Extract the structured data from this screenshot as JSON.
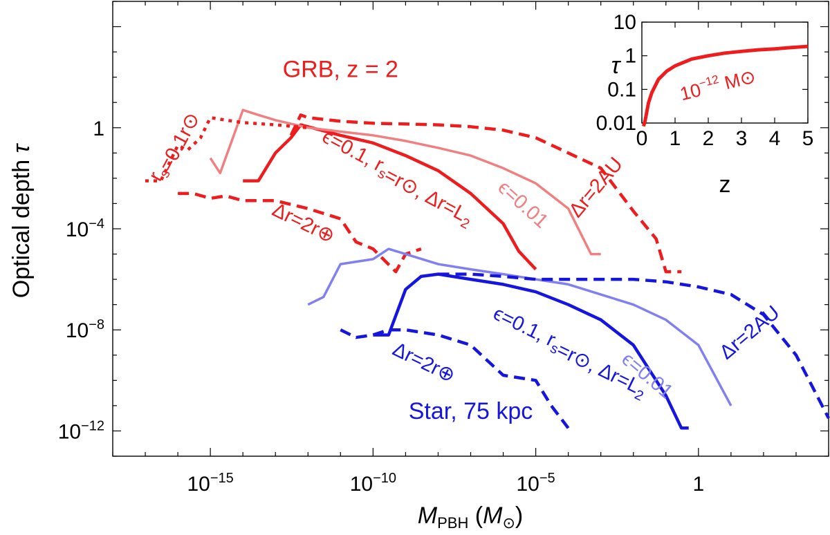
{
  "chart_data": {
    "type": "line",
    "title": "",
    "xlabel": "M_PBH (M_⊙)",
    "ylabel": "Optical depth τ",
    "xscale": "log",
    "yscale": "log",
    "xlim": [
      1e-18,
      10000.0
    ],
    "ylim": [
      1e-13,
      100000.0
    ],
    "x_ticks": [
      {
        "value": 1e-15,
        "label": "10^-15"
      },
      {
        "value": 1e-10,
        "label": "10^-10"
      },
      {
        "value": 1e-05,
        "label": "10^-5"
      },
      {
        "value": 1,
        "label": "1"
      }
    ],
    "y_ticks": [
      {
        "value": 1e-12,
        "label": "10^-12"
      },
      {
        "value": 1e-08,
        "label": "10^-8"
      },
      {
        "value": 0.0001,
        "label": "10^-4"
      },
      {
        "value": 1,
        "label": "1"
      }
    ],
    "colors": {
      "red": "#ee1c1c",
      "light_red": "#f08080",
      "blue": "#1515e0",
      "light_blue": "#8080f0"
    },
    "series": [
      {
        "name": "GRB eps=0.1 rs=rsun dr=L2",
        "color": "#ee1c1c",
        "style": "solid",
        "width": 4.5,
        "x": [
          1e-14,
          3e-14,
          1e-13,
          3e-13,
          6e-13,
          1e-12,
          5e-12,
          1e-11,
          1e-10,
          1e-09,
          1e-08,
          1e-07,
          1e-06,
          3e-06,
          1e-05
        ],
        "y": [
          0.0079,
          0.0079,
          0.1,
          0.4,
          1.3,
          1.1,
          0.63,
          0.5,
          0.25,
          0.079,
          0.02,
          0.0025,
          0.00016,
          1.3e-05,
          2.5e-06
        ]
      },
      {
        "name": "GRB eps=0.01",
        "color": "#f08080",
        "style": "solid",
        "width": 3.5,
        "x": [
          1e-15,
          2e-15,
          1e-14,
          3e-14,
          1e-13,
          1e-12,
          1e-11,
          1e-10,
          1e-09,
          1e-08,
          1e-07,
          1e-06,
          1e-05,
          0.0001,
          0.0005,
          0.001
        ],
        "y": [
          0.063,
          0.016,
          5,
          3.2,
          2,
          1,
          0.7,
          0.5,
          0.3,
          0.16,
          0.079,
          0.025,
          0.0063,
          0.00063,
          1e-05,
          1e-05
        ]
      },
      {
        "name": "GRB dotted rs=0.1 rsun",
        "color": "#ee1c1c",
        "style": "dotted",
        "width": 4.5,
        "x": [
          1e-17,
          3e-17,
          1e-16,
          2e-16,
          5e-16,
          1e-15,
          3e-15,
          1e-14,
          1e-13,
          1e-12
        ],
        "y": [
          0.0079,
          0.0079,
          0.2,
          0.13,
          0.4,
          2.5,
          2,
          1.6,
          1.3,
          1
        ]
      },
      {
        "name": "GRB dashed dr=2AU",
        "color": "#ee1c1c",
        "style": "dashed",
        "width": 4.5,
        "x": [
          3e-13,
          6e-13,
          1e-12,
          1e-11,
          1e-10,
          1e-09,
          1e-08,
          1e-07,
          1e-06,
          1e-05,
          0.0001,
          0.001,
          0.01,
          0.05,
          0.1,
          0.3
        ],
        "y": [
          0.5,
          3.2,
          2.5,
          1.8,
          1.5,
          1.4,
          1.3,
          1.1,
          0.8,
          0.4,
          0.1,
          0.025,
          0.0005,
          4e-05,
          2e-06,
          2e-06
        ]
      },
      {
        "name": "GRB dashed dr=2r_earth",
        "color": "#ee1c1c",
        "style": "dashed",
        "width": 4.5,
        "x": [
          1e-16,
          3e-16,
          1e-15,
          3e-15,
          1e-14,
          1e-13,
          1e-12,
          1e-11,
          3e-11,
          1e-10,
          5e-10,
          1e-09,
          3e-09
        ],
        "y": [
          0.0025,
          0.0025,
          0.0016,
          0.002,
          0.0013,
          0.0013,
          0.00063,
          0.00025,
          3e-05,
          1.6e-05,
          2e-06,
          1e-05,
          1.6e-05
        ]
      },
      {
        "name": "Star eps=0.1 rs=rsun dr=L2",
        "color": "#1515e0",
        "style": "solid",
        "width": 4.5,
        "x": [
          1e-10,
          3e-10,
          1e-09,
          3e-09,
          1e-08,
          1e-07,
          1e-06,
          1e-05,
          0.0001,
          0.001,
          0.01,
          0.1,
          0.3,
          0.5
        ],
        "y": [
          6.3e-09,
          6.3e-09,
          4e-07,
          1.3e-06,
          1.6e-06,
          1e-06,
          6.3e-07,
          3.2e-07,
          1e-07,
          2.5e-08,
          2.5e-09,
          2.5e-11,
          1.3e-12,
          1.3e-12
        ]
      },
      {
        "name": "Star eps=0.01",
        "color": "#8080f0",
        "style": "solid",
        "width": 3.5,
        "x": [
          1e-12,
          3e-12,
          1e-11,
          1e-10,
          3e-10,
          1e-09,
          1e-08,
          1e-07,
          1e-06,
          1e-05,
          0.0001,
          0.001,
          0.01,
          0.1,
          1,
          10
        ],
        "y": [
          1e-07,
          2e-07,
          4e-06,
          6.3e-06,
          1.6e-05,
          1e-05,
          4e-06,
          2.5e-06,
          1.6e-06,
          1e-06,
          6.3e-07,
          2.5e-07,
          1e-07,
          2.5e-08,
          2.5e-09,
          1e-11
        ]
      },
      {
        "name": "Star dashed dr=2AU",
        "color": "#1515e0",
        "style": "dashed",
        "width": 4.5,
        "x": [
          1e-08,
          1e-07,
          1e-06,
          1e-05,
          0.0001,
          0.001,
          0.01,
          0.1,
          1,
          10,
          100,
          1000,
          10000
        ],
        "y": [
          1.6e-06,
          1.6e-06,
          1.3e-06,
          1e-06,
          1e-06,
          1e-06,
          1e-06,
          8e-07,
          5e-07,
          2.5e-07,
          4e-08,
          1e-09,
          3.2e-12
        ]
      },
      {
        "name": "Star dashed dr=2r_earth",
        "color": "#1515e0",
        "style": "dashed",
        "width": 4.5,
        "x": [
          1e-11,
          3e-11,
          1e-10,
          3e-10,
          1e-09,
          1e-08,
          1e-07,
          1e-06,
          1e-05,
          3e-05,
          0.0001
        ],
        "y": [
          1e-08,
          5e-09,
          6.3e-09,
          1e-08,
          1e-08,
          6.3e-09,
          2.5e-09,
          1.6e-10,
          1e-10,
          1e-11,
          1.3e-12
        ]
      }
    ],
    "corner_labels": [
      {
        "text": "GRB, z = 2",
        "color": "#ee1c1c",
        "x": 1e-11,
        "y": 100
      },
      {
        "text": "Star, 75 kpc",
        "color": "#1515e0",
        "x": 1e-07,
        "y": 3e-12
      }
    ],
    "curve_labels": [
      {
        "text": "rs=0.1r⊙",
        "color": "#ee1c1c",
        "x": 1e-16,
        "y": 0.15,
        "angle": -62
      },
      {
        "text": "ϵ=0.1, rs=r⊙, Δr=L2",
        "color": "#ee1c1c",
        "x": 5e-10,
        "y": 0.008,
        "angle": 28
      },
      {
        "text": "ϵ=0.01",
        "color": "#f08080",
        "x": 3e-06,
        "y": 0.0006,
        "angle": 42
      },
      {
        "text": "Δr=2AU",
        "color": "#ee1c1c",
        "x": 0.001,
        "y": 0.003,
        "angle": -50
      },
      {
        "text": "Δr=2r⊕",
        "color": "#ee1c1c",
        "x": 6e-13,
        "y": 0.0001,
        "angle": 26
      },
      {
        "text": "ϵ=0.1, rs=r⊙, Δr=L2",
        "color": "#1515e0",
        "x": 0.0001,
        "y": 1e-09,
        "angle": 26
      },
      {
        "text": "ϵ=0.01",
        "color": "#8080f0",
        "x": 0.02,
        "y": 1e-10,
        "angle": 40
      },
      {
        "text": "Δr=2AU",
        "color": "#1515e0",
        "x": 50,
        "y": 5e-09,
        "angle": -40
      },
      {
        "text": "Δr=2r⊕",
        "color": "#1515e0",
        "x": 3e-09,
        "y": 3e-10,
        "angle": 26
      }
    ],
    "inset": {
      "xlabel": "z",
      "ylabel": "τ",
      "xscale": "linear",
      "yscale": "log",
      "xlim": [
        0,
        5
      ],
      "ylim": [
        0.01,
        10
      ],
      "x_ticks": [
        0,
        1,
        2,
        3,
        4,
        5
      ],
      "y_ticks": [
        {
          "value": 0.01,
          "label": "0.01"
        },
        {
          "value": 0.1,
          "label": "0.1"
        },
        {
          "value": 1,
          "label": "1"
        },
        {
          "value": 10,
          "label": "10"
        }
      ],
      "label": "10^-12 M⊙",
      "series": {
        "color": "#ee1c1c",
        "z": [
          0.05,
          0.1,
          0.2,
          0.3,
          0.5,
          0.75,
          1,
          1.5,
          2,
          2.5,
          3,
          3.5,
          4,
          4.5,
          5
        ],
        "tau": [
          0.008,
          0.012,
          0.04,
          0.08,
          0.2,
          0.35,
          0.5,
          0.8,
          1.0,
          1.2,
          1.35,
          1.5,
          1.6,
          1.75,
          1.9
        ]
      }
    }
  }
}
